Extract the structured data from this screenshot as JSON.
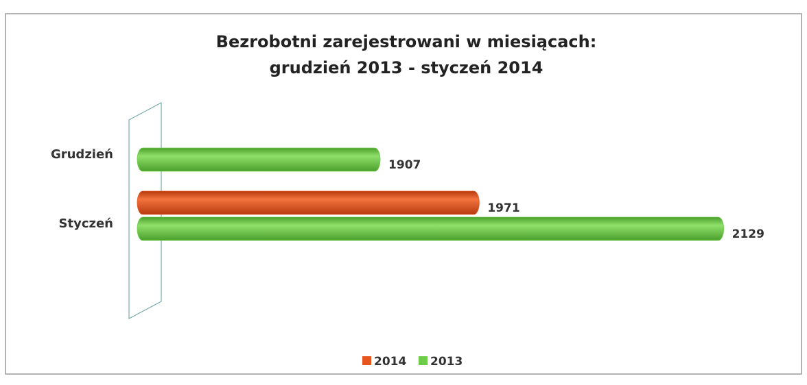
{
  "chart_data": {
    "type": "bar",
    "orientation": "horizontal",
    "title": "Bezrobotni zarejestrowani w miesiącach:",
    "subtitle": "grudzień 2013 - styczeń 2014",
    "categories": [
      "Grudzień",
      "Styczeń"
    ],
    "series": [
      {
        "name": "2014",
        "color": "#e8561f",
        "values": [
          null,
          1971
        ]
      },
      {
        "name": "2013",
        "color": "#6fcb4a",
        "values": [
          1907,
          2129
        ]
      }
    ],
    "xlim": [
      1750,
      2150
    ],
    "legend": "bottom"
  }
}
